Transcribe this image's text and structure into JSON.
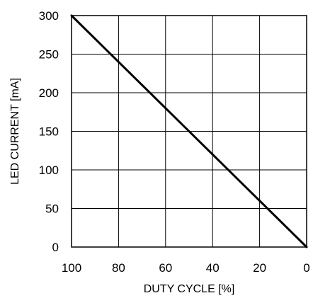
{
  "chart_data": {
    "type": "line",
    "xlabel": "DUTY CYCLE [%]",
    "ylabel": "LED CURRENT [mA]",
    "xlim": [
      100,
      0
    ],
    "ylim": [
      0,
      300
    ],
    "x_reversed": true,
    "grid": true,
    "x_ticks": [
      100,
      80,
      60,
      40,
      20,
      0
    ],
    "y_ticks": [
      0,
      50,
      100,
      150,
      200,
      250,
      300
    ],
    "series": [
      {
        "x": [
          100,
          80,
          60,
          40,
          20,
          0
        ],
        "y": [
          300,
          240,
          180,
          120,
          60,
          0
        ]
      }
    ],
    "colors": {
      "line": "#000000",
      "grid": "#000000",
      "frame": "#000000"
    }
  }
}
